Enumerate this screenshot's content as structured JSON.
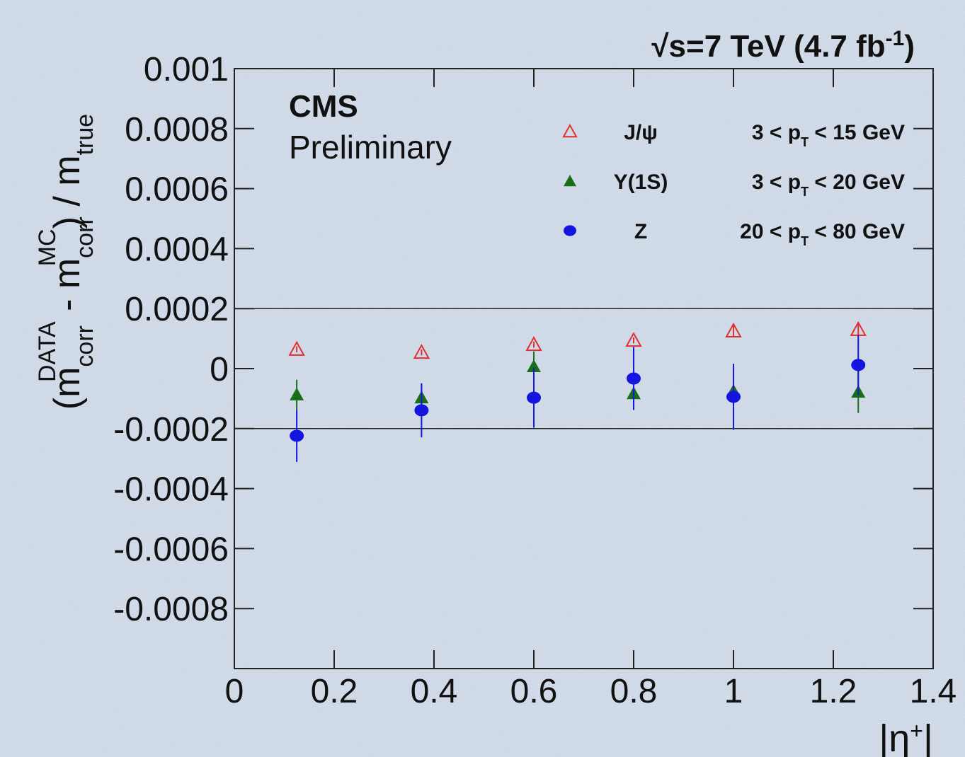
{
  "chart_data": {
    "type": "errorbar",
    "title_parts": [
      "√s=7 TeV  (4.7 fb",
      "-1",
      ")"
    ],
    "annotations": [
      "CMS",
      "Preliminary"
    ],
    "ylabel_parts": [
      "(m",
      "corr",
      "DATA",
      " - m",
      "corr",
      "MC",
      ") / m",
      "true"
    ],
    "xlabel_parts": [
      "|η",
      "+",
      "|"
    ],
    "x": [
      0.125,
      0.375,
      0.6,
      0.8,
      1.0,
      1.25
    ],
    "series": [
      {
        "name": "J/ψ",
        "range_parts": [
          "3 < p",
          "T",
          " < 15 GeV"
        ],
        "color": "#e03030",
        "marker": "open-triangle",
        "values": [
          6.4e-05,
          5.4e-05,
          8e-05,
          9.4e-05,
          0.000125,
          0.00013
        ],
        "errors": [
          1e-05,
          1e-05,
          1e-05,
          1e-05,
          2e-05,
          2e-05
        ]
      },
      {
        "name": "Υ(1S)",
        "range_parts": [
          "3 < p",
          "T",
          " < 20 GeV"
        ],
        "color": "#1a6e1a",
        "marker": "triangle",
        "values": [
          -8.7e-05,
          -9.7e-05,
          7e-06,
          -8.3e-05,
          -7.5e-05,
          -7.8e-05
        ],
        "errors": [
          5e-05,
          4e-05,
          5e-05,
          5e-05,
          5e-05,
          7e-05
        ]
      },
      {
        "name": "Z",
        "range_parts": [
          "20 < p",
          "T",
          " < 80 GeV"
        ],
        "color": "#1515e0",
        "marker": "circle",
        "values": [
          -0.000224,
          -0.000139,
          -9.7e-05,
          -3.3e-05,
          -9.4e-05,
          1.2e-05
        ],
        "errors": [
          8.7e-05,
          9e-05,
          0.0001,
          0.000105,
          0.00011,
          0.0001
        ]
      }
    ],
    "reference_lines": [
      0.0002,
      -0.0002
    ],
    "xlim": [
      0,
      1.4
    ],
    "xticks": [
      0,
      0.2,
      0.4,
      0.6,
      0.8,
      1.0,
      1.2,
      1.4
    ],
    "ylim": [
      -0.001,
      0.001
    ],
    "yticks": [
      0.001,
      0.0008,
      0.0006,
      0.0004,
      0.0002,
      0,
      -0.0002,
      -0.0004,
      -0.0006,
      -0.0008
    ]
  }
}
